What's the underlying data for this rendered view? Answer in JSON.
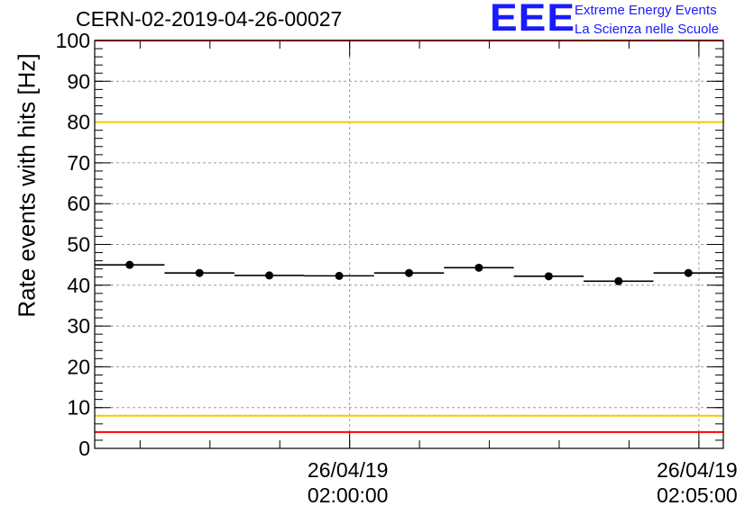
{
  "chart_data": {
    "type": "scatter",
    "title": "CERN-02-2019-04-26-00027",
    "xlabel": "",
    "ylabel": "Rate events with hits [Hz]",
    "ylim": [
      0,
      100
    ],
    "xlim": [
      0,
      9
    ],
    "grid": true,
    "y_ticks": [
      "0",
      "10",
      "20",
      "30",
      "40",
      "50",
      "60",
      "70",
      "80",
      "90",
      "100"
    ],
    "x_tick_labels": [
      {
        "x": 3.65,
        "date": "26/04/19",
        "time": "02:00:00"
      },
      {
        "x": 8.65,
        "date": "26/04/19",
        "time": "02:05:00"
      }
    ],
    "series": [
      {
        "x": [
          0.5,
          1.5,
          2.5,
          3.5,
          4.5,
          5.5,
          6.5,
          7.5,
          8.5
        ],
        "values": [
          45.0,
          43.0,
          42.4,
          42.3,
          43.0,
          44.3,
          42.2,
          41.0,
          43.0
        ],
        "bin_width": 1
      }
    ],
    "reference_lines": [
      {
        "y": 100,
        "color": "#ff0000"
      },
      {
        "y": 80,
        "color": "#f5c800"
      },
      {
        "y": 8,
        "color": "#f5c800"
      },
      {
        "y": 4,
        "color": "#ff0000"
      }
    ]
  },
  "logo": {
    "mark": "EEE",
    "line1": "Extreme Energy Events",
    "line2": "La Scienza nelle Scuole",
    "color": "#1a1aff"
  }
}
